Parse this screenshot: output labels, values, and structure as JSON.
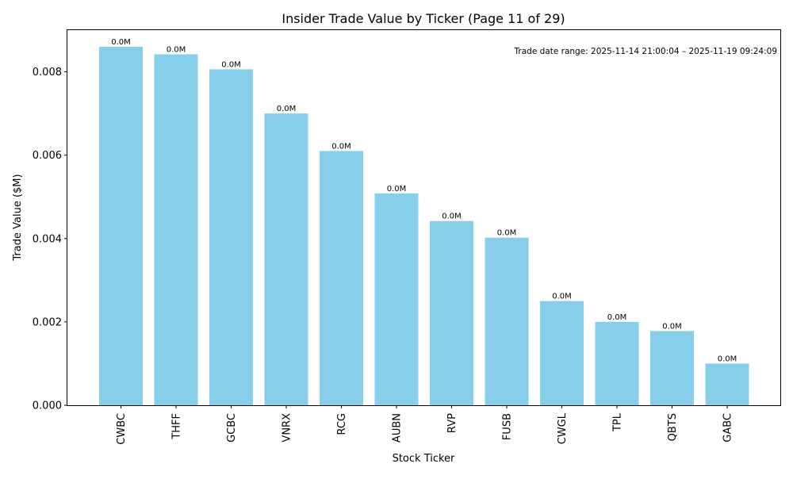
{
  "chart_data": {
    "type": "bar",
    "title": "Insider Trade Value by Ticker (Page 11 of 29)",
    "xlabel": "Stock Ticker",
    "ylabel": "Trade Value ($M)",
    "categories": [
      "CWBC",
      "THFF",
      "GCBC",
      "VNRX",
      "RCG",
      "AUBN",
      "RVP",
      "FUSB",
      "CWGL",
      "TPL",
      "QBTS",
      "GABC"
    ],
    "values": [
      0.0086,
      0.00842,
      0.00806,
      0.007,
      0.0061,
      0.00508,
      0.00442,
      0.00402,
      0.0025,
      0.002,
      0.00178,
      0.001
    ],
    "data_labels": [
      "0.0M",
      "0.0M",
      "0.0M",
      "0.0M",
      "0.0M",
      "0.0M",
      "0.0M",
      "0.0M",
      "0.0M",
      "0.0M",
      "0.0M",
      "0.0M"
    ],
    "ylim": [
      0,
      0.009
    ],
    "yticks": [
      0,
      0.002,
      0.004,
      0.006,
      0.008
    ],
    "ytick_labels": [
      "0.000",
      "0.002",
      "0.004",
      "0.006",
      "0.008"
    ],
    "bar_color": "#87ceeb",
    "grid": false,
    "annotation": "Trade date range: 2025-11-14 21:00:04 – 2025-11-19 09:24:09"
  }
}
